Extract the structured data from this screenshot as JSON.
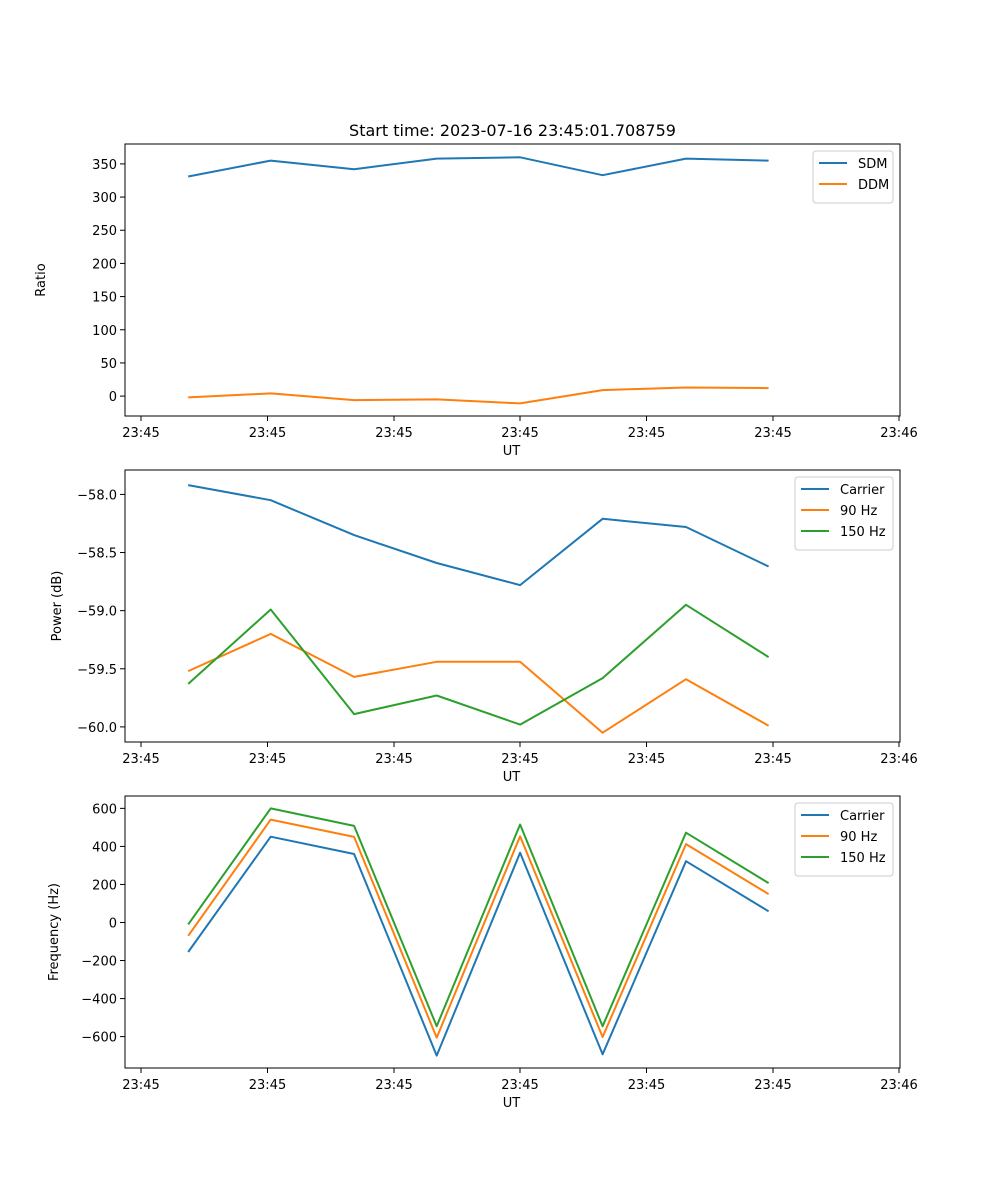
{
  "chart_data": [
    {
      "type": "line",
      "title": "Start time: 2023-07-16 23:45:01.708759",
      "xlabel": "UT",
      "ylabel": "Ratio",
      "x_tick_labels": [
        "23:45",
        "23:45",
        "23:45",
        "23:45",
        "23:45",
        "23:45",
        "23:46"
      ],
      "xlim": [
        0,
        9.2
      ],
      "x": [
        0.75,
        1.73,
        2.72,
        3.7,
        4.69,
        5.67,
        6.66,
        7.64
      ],
      "ylim": [
        -30,
        380
      ],
      "yticks": [
        0,
        50,
        100,
        150,
        200,
        250,
        300,
        350
      ],
      "legend_position": "upper right",
      "series": [
        {
          "name": "SDM",
          "color": "#1f77b4",
          "values": [
            331,
            355,
            342,
            358,
            360,
            333,
            358,
            355
          ]
        },
        {
          "name": "DDM",
          "color": "#ff7f0e",
          "values": [
            -2,
            4,
            -6,
            -5,
            -11,
            9,
            13,
            12
          ]
        }
      ]
    },
    {
      "type": "line",
      "title": "",
      "xlabel": "UT",
      "ylabel": "Power (dB)",
      "x_tick_labels": [
        "23:45",
        "23:45",
        "23:45",
        "23:45",
        "23:45",
        "23:45",
        "23:46"
      ],
      "xlim": [
        0,
        9.2
      ],
      "x": [
        0.75,
        1.73,
        2.72,
        3.7,
        4.69,
        5.67,
        6.66,
        7.64
      ],
      "ylim": [
        -60.13,
        -57.79
      ],
      "yticks": [
        -60.0,
        -59.5,
        -59.0,
        -58.5,
        -58.0
      ],
      "ytick_labels": [
        "−60.0",
        "−59.5",
        "−59.0",
        "−58.5",
        "−58.0"
      ],
      "legend_position": "upper right",
      "series": [
        {
          "name": "Carrier",
          "color": "#1f77b4",
          "values": [
            -57.92,
            -58.05,
            -58.35,
            -58.59,
            -58.78,
            -58.21,
            -58.28,
            -58.62
          ]
        },
        {
          "name": "90 Hz",
          "color": "#ff7f0e",
          "values": [
            -59.52,
            -59.2,
            -59.57,
            -59.44,
            -59.44,
            -60.05,
            -59.59,
            -59.99
          ]
        },
        {
          "name": "150 Hz",
          "color": "#2ca02c",
          "values": [
            -59.63,
            -58.99,
            -59.89,
            -59.73,
            -59.98,
            -59.58,
            -58.95,
            -59.4
          ]
        }
      ]
    },
    {
      "type": "line",
      "title": "",
      "xlabel": "UT",
      "ylabel": "Frequency (Hz)",
      "x_tick_labels": [
        "23:45",
        "23:45",
        "23:45",
        "23:45",
        "23:45",
        "23:45",
        "23:46"
      ],
      "xlim": [
        0,
        9.2
      ],
      "x": [
        0.75,
        1.73,
        2.72,
        3.7,
        4.69,
        5.67,
        6.66,
        7.64
      ],
      "ylim": [
        -765,
        665
      ],
      "yticks": [
        -600,
        -400,
        -200,
        0,
        200,
        400,
        600
      ],
      "ytick_labels": [
        "−600",
        "−400",
        "−200",
        "0",
        "200",
        "400",
        "600"
      ],
      "legend_position": "upper right",
      "series": [
        {
          "name": "Carrier",
          "color": "#1f77b4",
          "values": [
            -155,
            451,
            360,
            -700,
            367,
            -693,
            322,
            59
          ]
        },
        {
          "name": "90 Hz",
          "color": "#ff7f0e",
          "values": [
            -70,
            541,
            450,
            -605,
            453,
            -602,
            412,
            149
          ]
        },
        {
          "name": "150 Hz",
          "color": "#2ca02c",
          "values": [
            -10,
            600,
            508,
            -545,
            515,
            -545,
            472,
            207
          ]
        }
      ]
    }
  ]
}
